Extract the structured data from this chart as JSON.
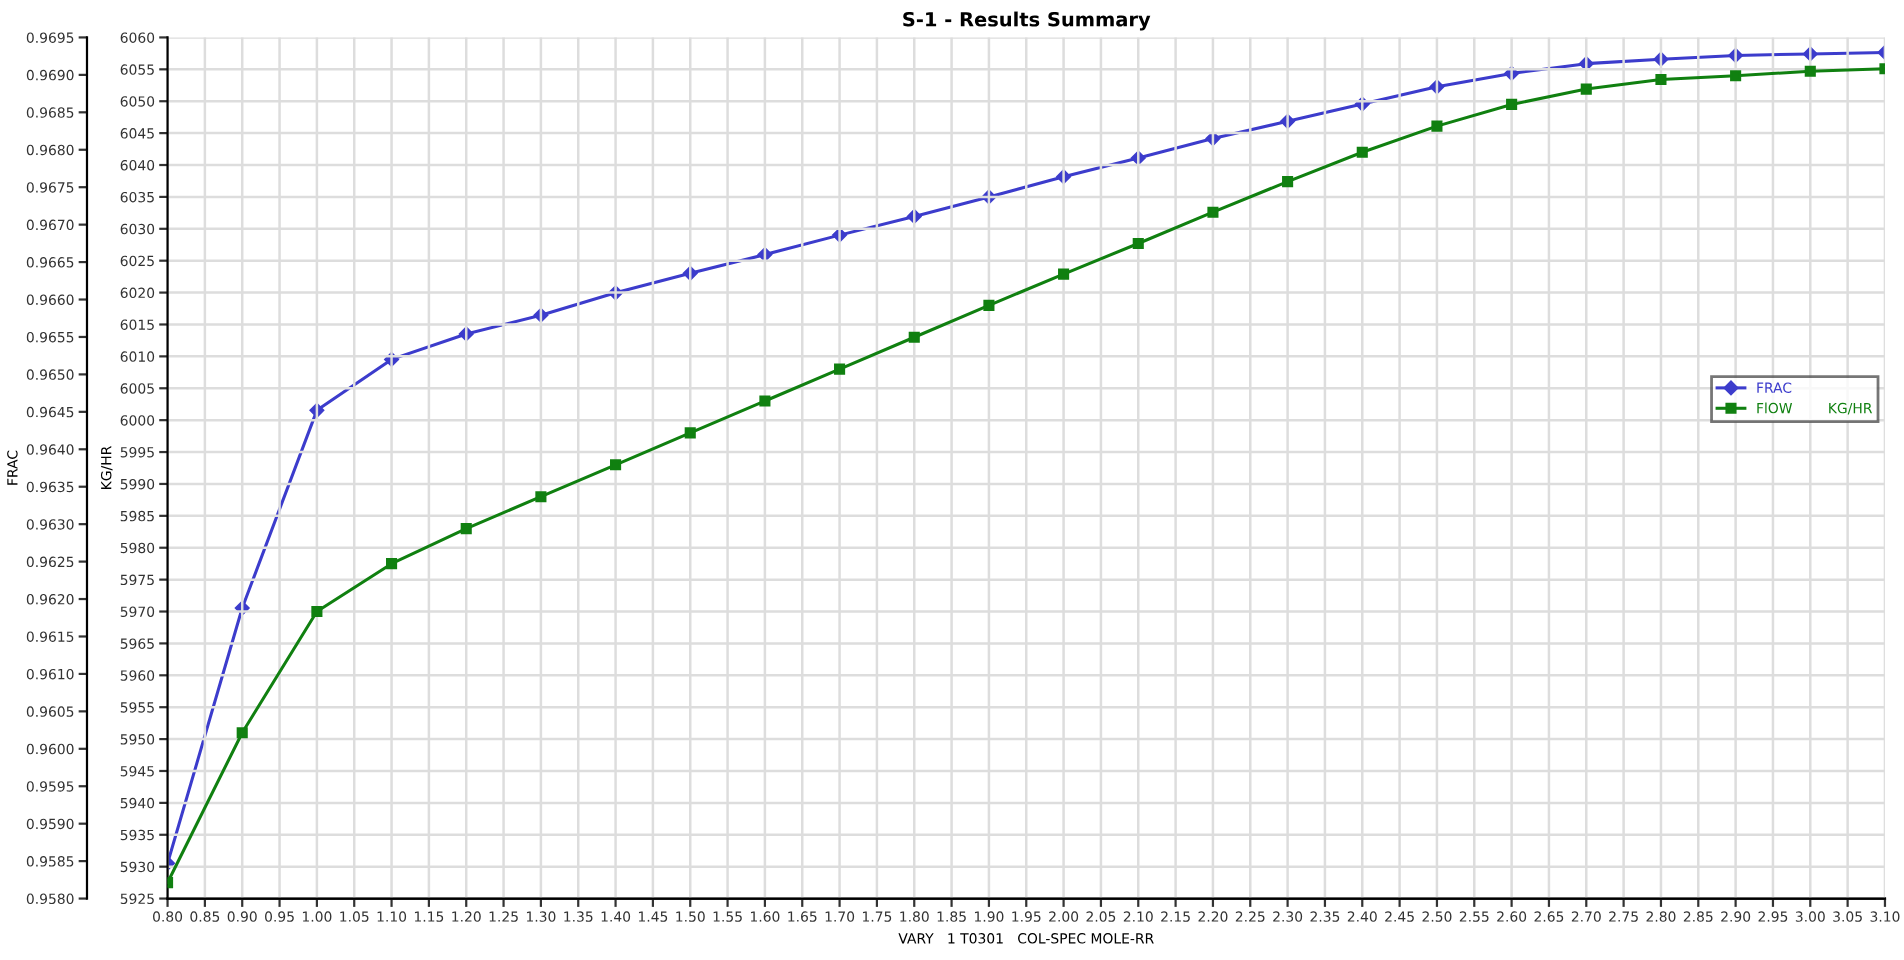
{
  "chart_data": {
    "type": "line",
    "title": "S-1 - Results Summary",
    "xlabel": "VARY   1 T0301   COL-SPEC MOLE-RR",
    "ylabel": "KG/HR",
    "y2label": "FRAC",
    "x": [
      0.8,
      0.9,
      1.0,
      1.1,
      1.2,
      1.3,
      1.4,
      1.5,
      1.6,
      1.7,
      1.8,
      1.9,
      2.0,
      2.1,
      2.2,
      2.3,
      2.4,
      2.5,
      2.6,
      2.7,
      2.8,
      2.9,
      3.0,
      3.1
    ],
    "series": [
      {
        "name": "FRAC",
        "color": "#3c3ccc",
        "axis": "y2",
        "marker": "diamond",
        "values": [
          0.95847,
          0.96188,
          0.96452,
          0.9652,
          0.96554,
          0.96579,
          0.96609,
          0.96635,
          0.9666,
          0.96686,
          0.96711,
          0.96737,
          0.96764,
          0.96789,
          0.96815,
          0.96838,
          0.96861,
          0.96884,
          0.96902,
          0.96915,
          0.96921,
          0.96926,
          0.96928,
          0.9693
        ]
      },
      {
        "name": "FlOW        KG/HR",
        "color": "#108010",
        "marker": "square",
        "values": [
          5927.5,
          5951,
          5970,
          5977.5,
          5983,
          5988,
          5993,
          5998,
          6003,
          6008,
          6013,
          6018,
          6022.9,
          6027.7,
          6032.6,
          6037.4,
          6042.0,
          6046.1,
          6049.5,
          6051.9,
          6053.4,
          6054.0,
          6054.7,
          6055.1
        ]
      }
    ],
    "xlim": [
      0.8,
      3.1
    ],
    "xticks": [
      {
        "value": 0.8,
        "label": "0.80"
      },
      {
        "value": 0.85,
        "label": "0.85"
      },
      {
        "value": 0.9,
        "label": "0.90"
      },
      {
        "value": 0.95,
        "label": "0.95"
      },
      {
        "value": 1.0,
        "label": "1.00"
      },
      {
        "value": 1.05,
        "label": "1.05"
      },
      {
        "value": 1.1,
        "label": "1.10"
      },
      {
        "value": 1.15,
        "label": "1.15"
      },
      {
        "value": 1.2,
        "label": "1.20"
      },
      {
        "value": 1.25,
        "label": "1.25"
      },
      {
        "value": 1.3,
        "label": "1.30"
      },
      {
        "value": 1.35,
        "label": "1.35"
      },
      {
        "value": 1.4,
        "label": "1.40"
      },
      {
        "value": 1.45,
        "label": "1.45"
      },
      {
        "value": 1.5,
        "label": "1.50"
      },
      {
        "value": 1.55,
        "label": "1.55"
      },
      {
        "value": 1.6,
        "label": "1.60"
      },
      {
        "value": 1.65,
        "label": "1.65"
      },
      {
        "value": 1.7,
        "label": "1.70"
      },
      {
        "value": 1.75,
        "label": "1.75"
      },
      {
        "value": 1.8,
        "label": "1.80"
      },
      {
        "value": 1.85,
        "label": "1.85"
      },
      {
        "value": 1.9,
        "label": "1.90"
      },
      {
        "value": 1.95,
        "label": "1.95"
      },
      {
        "value": 2.0,
        "label": "2.00"
      },
      {
        "value": 2.05,
        "label": "2.05"
      },
      {
        "value": 2.1,
        "label": "2.10"
      },
      {
        "value": 2.15,
        "label": "2.15"
      },
      {
        "value": 2.2,
        "label": "2.20"
      },
      {
        "value": 2.25,
        "label": "2.25"
      },
      {
        "value": 2.3,
        "label": "2.30"
      },
      {
        "value": 2.35,
        "label": "2.35"
      },
      {
        "value": 2.4,
        "label": "2.40"
      },
      {
        "value": 2.45,
        "label": "2.45"
      },
      {
        "value": 2.5,
        "label": "2.50"
      },
      {
        "value": 2.55,
        "label": "2.55"
      },
      {
        "value": 2.6,
        "label": "2.60"
      },
      {
        "value": 2.65,
        "label": "2.65"
      },
      {
        "value": 2.7,
        "label": "2.70"
      },
      {
        "value": 2.75,
        "label": "2.75"
      },
      {
        "value": 2.8,
        "label": "2.80"
      },
      {
        "value": 2.85,
        "label": "2.85"
      },
      {
        "value": 2.9,
        "label": "2.90"
      },
      {
        "value": 2.95,
        "label": "2.95"
      },
      {
        "value": 3.0,
        "label": "3.00"
      },
      {
        "value": 3.05,
        "label": "3.05"
      },
      {
        "value": 3.1,
        "label": "3.10"
      }
    ],
    "ylim": [
      5925,
      6060
    ],
    "yticks": [
      5925,
      5930,
      5935,
      5940,
      5945,
      5950,
      5955,
      5960,
      5965,
      5970,
      5975,
      5980,
      5985,
      5990,
      5995,
      6000,
      6005,
      6010,
      6015,
      6020,
      6025,
      6030,
      6035,
      6040,
      6045,
      6050,
      6055,
      6060
    ],
    "y2lim": [
      0.958,
      0.9695
    ],
    "y2ticks": [
      {
        "value": 0.958,
        "label": "0.9580"
      },
      {
        "value": 0.9585,
        "label": "0.9585"
      },
      {
        "value": 0.959,
        "label": "0.9590"
      },
      {
        "value": 0.9595,
        "label": "0.9595"
      },
      {
        "value": 0.96,
        "label": "0.9600"
      },
      {
        "value": 0.9605,
        "label": "0.9605"
      },
      {
        "value": 0.961,
        "label": "0.9610"
      },
      {
        "value": 0.9615,
        "label": "0.9615"
      },
      {
        "value": 0.962,
        "label": "0.9620"
      },
      {
        "value": 0.9625,
        "label": "0.9625"
      },
      {
        "value": 0.963,
        "label": "0.9630"
      },
      {
        "value": 0.9635,
        "label": "0.9635"
      },
      {
        "value": 0.964,
        "label": "0.9640"
      },
      {
        "value": 0.9645,
        "label": "0.9645"
      },
      {
        "value": 0.965,
        "label": "0.9650"
      },
      {
        "value": 0.9655,
        "label": "0.9655"
      },
      {
        "value": 0.966,
        "label": "0.9660"
      },
      {
        "value": 0.9665,
        "label": "0.9665"
      },
      {
        "value": 0.967,
        "label": "0.9670"
      },
      {
        "value": 0.9675,
        "label": "0.9675"
      },
      {
        "value": 0.968,
        "label": "0.9680"
      },
      {
        "value": 0.9685,
        "label": "0.9685"
      },
      {
        "value": 0.969,
        "label": "0.9690"
      },
      {
        "value": 0.9695,
        "label": "0.9695"
      }
    ],
    "grid": true,
    "legend": "right",
    "line_style": "solid"
  }
}
